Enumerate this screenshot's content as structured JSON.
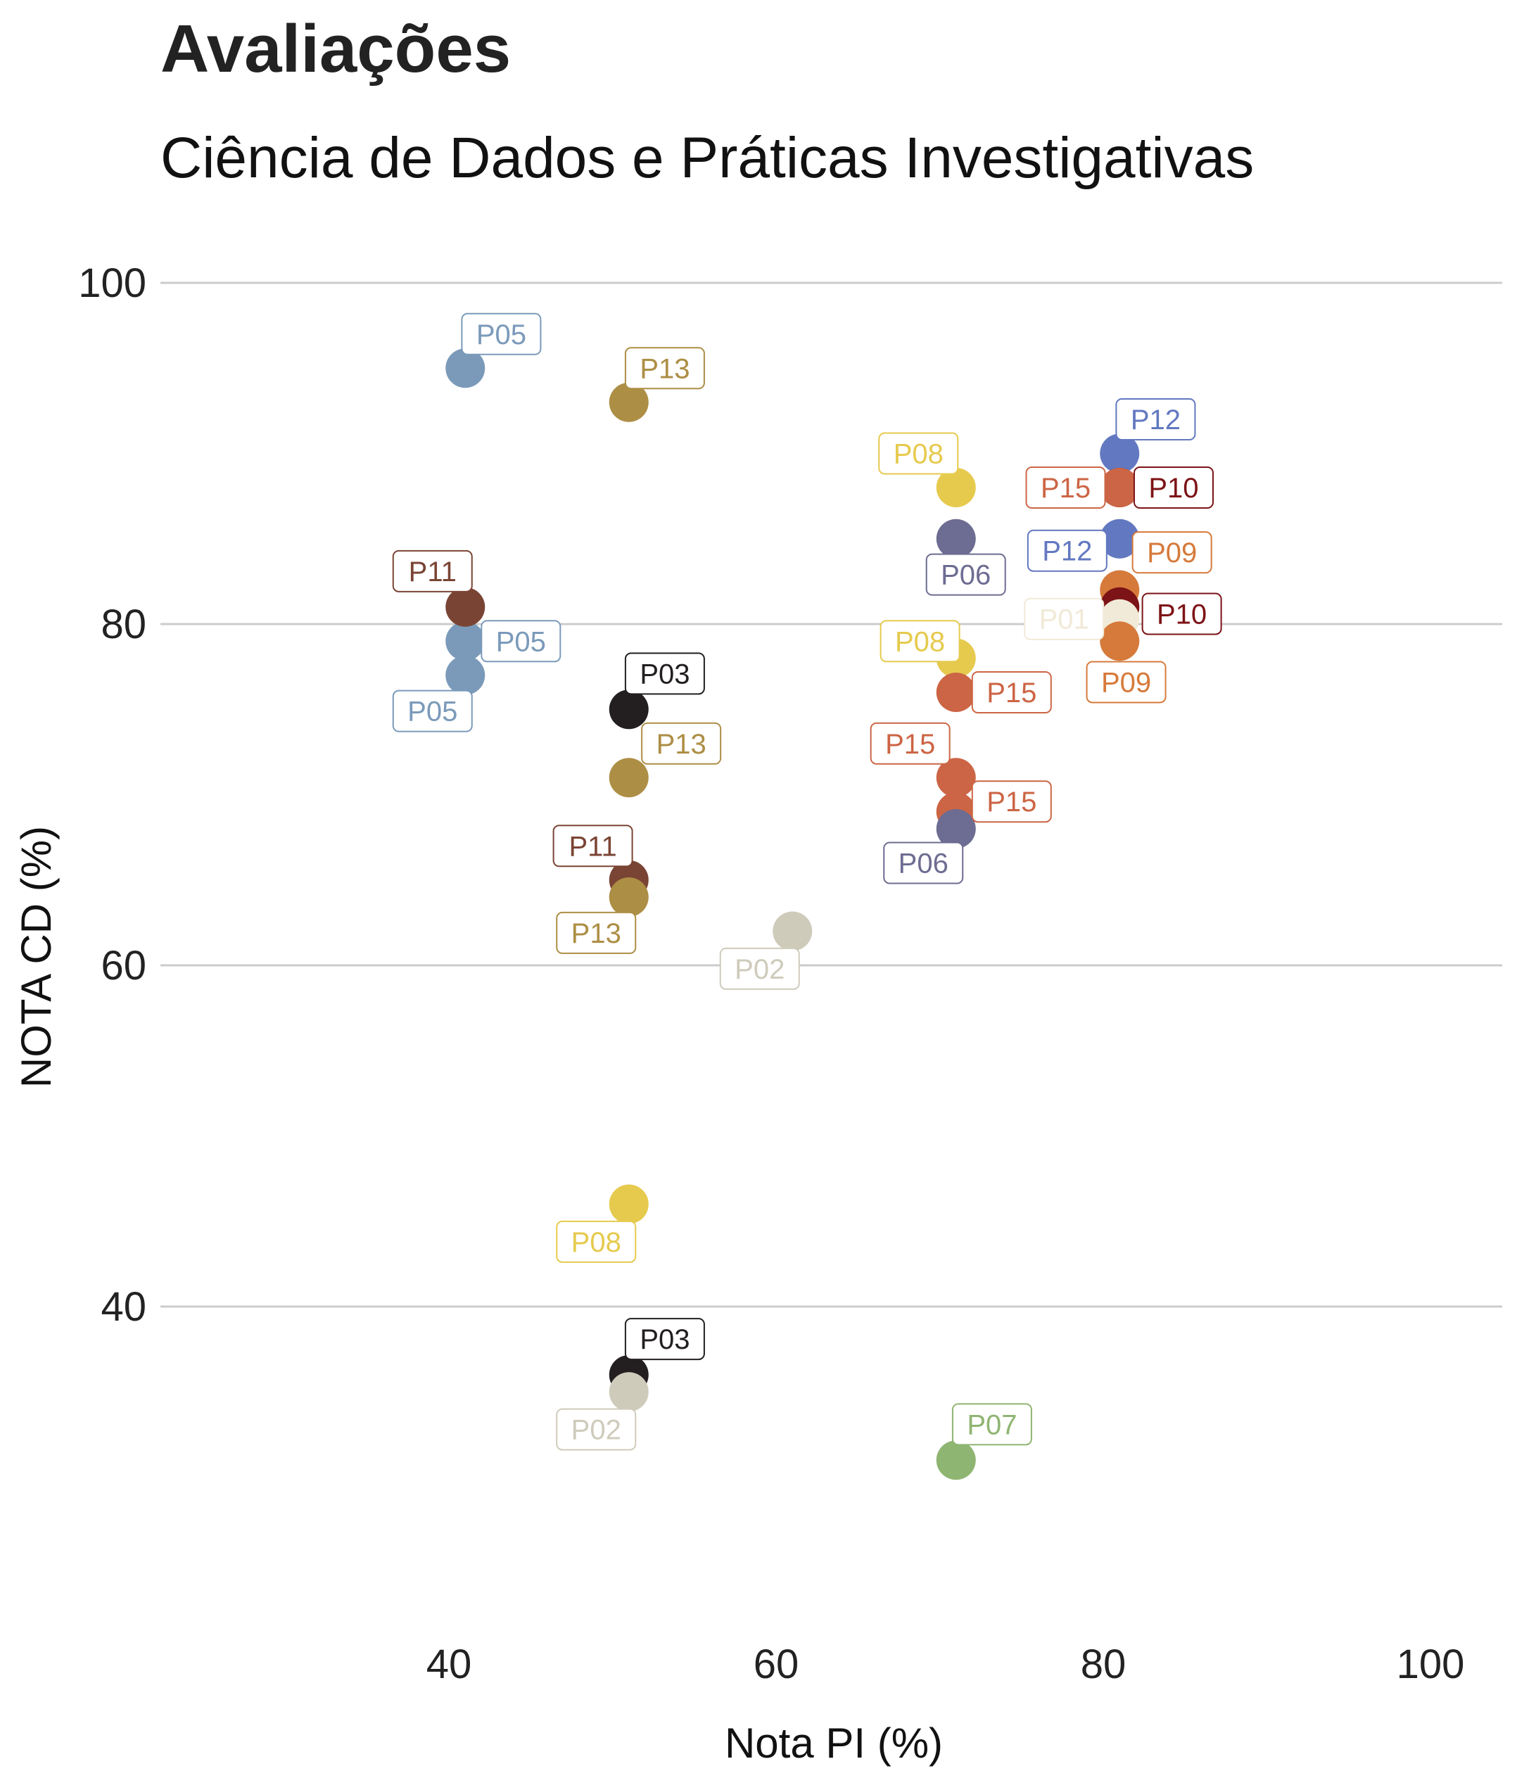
{
  "chart_data": {
    "type": "scatter",
    "title": "Avaliações",
    "subtitle": "Ciência de Dados e Práticas Investigativas",
    "xlabel": "Nota PI (%)",
    "ylabel": "NOTA CD (%)",
    "xlim": [
      22,
      104
    ],
    "ylim": [
      18,
      103
    ],
    "x_ticks": [
      40,
      60,
      80,
      100
    ],
    "y_ticks": [
      40,
      60,
      80,
      100
    ],
    "grid": "horizontal major lines only",
    "legend": "none",
    "colors": {
      "P01": "#f1ead8",
      "P02": "#cfcbbb",
      "P03": "#231f20",
      "P05": "#7b9aba",
      "P06": "#6d6c92",
      "P07": "#8fb572",
      "P08": "#e6ca4e",
      "P09": "#d67a3b",
      "P10": "#7c1316",
      "P11": "#7a4434",
      "P12": "#6278c0",
      "P13": "#ad8e45",
      "P15": "#cc6545"
    },
    "points": [
      {
        "id": "P05",
        "x": 41,
        "y": 95,
        "label_dx": 2.2,
        "label_dy": 2.0
      },
      {
        "id": "P05",
        "x": 41,
        "y": 79,
        "label_dx": 3.4,
        "label_dy": 0.0
      },
      {
        "id": "P05",
        "x": 41,
        "y": 77,
        "label_dx": -2.0,
        "label_dy": -2.1
      },
      {
        "id": "P11",
        "x": 41,
        "y": 81,
        "label_dx": -2.0,
        "label_dy": 2.1
      },
      {
        "id": "P13",
        "x": 51,
        "y": 93,
        "label_dx": 2.2,
        "label_dy": 2.0
      },
      {
        "id": "P03",
        "x": 51,
        "y": 75,
        "label_dx": 2.2,
        "label_dy": 2.1
      },
      {
        "id": "P13",
        "x": 51,
        "y": 71,
        "label_dx": 3.2,
        "label_dy": 2.0
      },
      {
        "id": "P11",
        "x": 51,
        "y": 65,
        "label_dx": -2.2,
        "label_dy": 2.0
      },
      {
        "id": "P13",
        "x": 51,
        "y": 64,
        "label_dx": -2.0,
        "label_dy": -2.1
      },
      {
        "id": "P08",
        "x": 51,
        "y": 46,
        "label_dx": -2.0,
        "label_dy": -2.2
      },
      {
        "id": "P03",
        "x": 51,
        "y": 36,
        "label_dx": 2.2,
        "label_dy": 2.1
      },
      {
        "id": "P02",
        "x": 51,
        "y": 35,
        "label_dx": -2.0,
        "label_dy": -2.2
      },
      {
        "id": "P02",
        "x": 61,
        "y": 62,
        "label_dx": -2.0,
        "label_dy": -2.2
      },
      {
        "id": "P08",
        "x": 71,
        "y": 88,
        "label_dx": -2.3,
        "label_dy": 2.0
      },
      {
        "id": "P06",
        "x": 71,
        "y": 85,
        "label_dx": 0.6,
        "label_dy": -2.1
      },
      {
        "id": "P08",
        "x": 71,
        "y": 78,
        "label_dx": -2.2,
        "label_dy": 1.0
      },
      {
        "id": "P15",
        "x": 71,
        "y": 76,
        "label_dx": 3.4,
        "label_dy": 0.0
      },
      {
        "id": "P15",
        "x": 71,
        "y": 71,
        "label_dx": -2.8,
        "label_dy": 2.0
      },
      {
        "id": "P15",
        "x": 71,
        "y": 69,
        "label_dx": 3.4,
        "label_dy": 0.6
      },
      {
        "id": "P06",
        "x": 71,
        "y": 68,
        "label_dx": -2.0,
        "label_dy": -2.0
      },
      {
        "id": "P12",
        "x": 81,
        "y": 90,
        "label_dx": 2.2,
        "label_dy": 2.0
      },
      {
        "id": "P10",
        "x": 81,
        "y": 88,
        "label_dx": 3.3,
        "label_dy": 0.0
      },
      {
        "id": "P15",
        "x": 81,
        "y": 88,
        "label_dx": -3.3,
        "label_dy": 0.0
      },
      {
        "id": "P12",
        "x": 81,
        "y": 85,
        "label_dx": -3.2,
        "label_dy": -0.7
      },
      {
        "id": "P09",
        "x": 81,
        "y": 82,
        "label_dx": 3.2,
        "label_dy": 2.2
      },
      {
        "id": "P10",
        "x": 81,
        "y": 81,
        "label_dx": 3.8,
        "label_dy": -0.4
      },
      {
        "id": "P01",
        "x": 81,
        "y": 80.3,
        "label_dx": -3.4,
        "label_dy": 0.0
      },
      {
        "id": "P09",
        "x": 81,
        "y": 79,
        "label_dx": 0.4,
        "label_dy": -2.4
      },
      {
        "id": "P07",
        "x": 71,
        "y": 31,
        "label_dx": 2.2,
        "label_dy": 2.1
      }
    ]
  }
}
